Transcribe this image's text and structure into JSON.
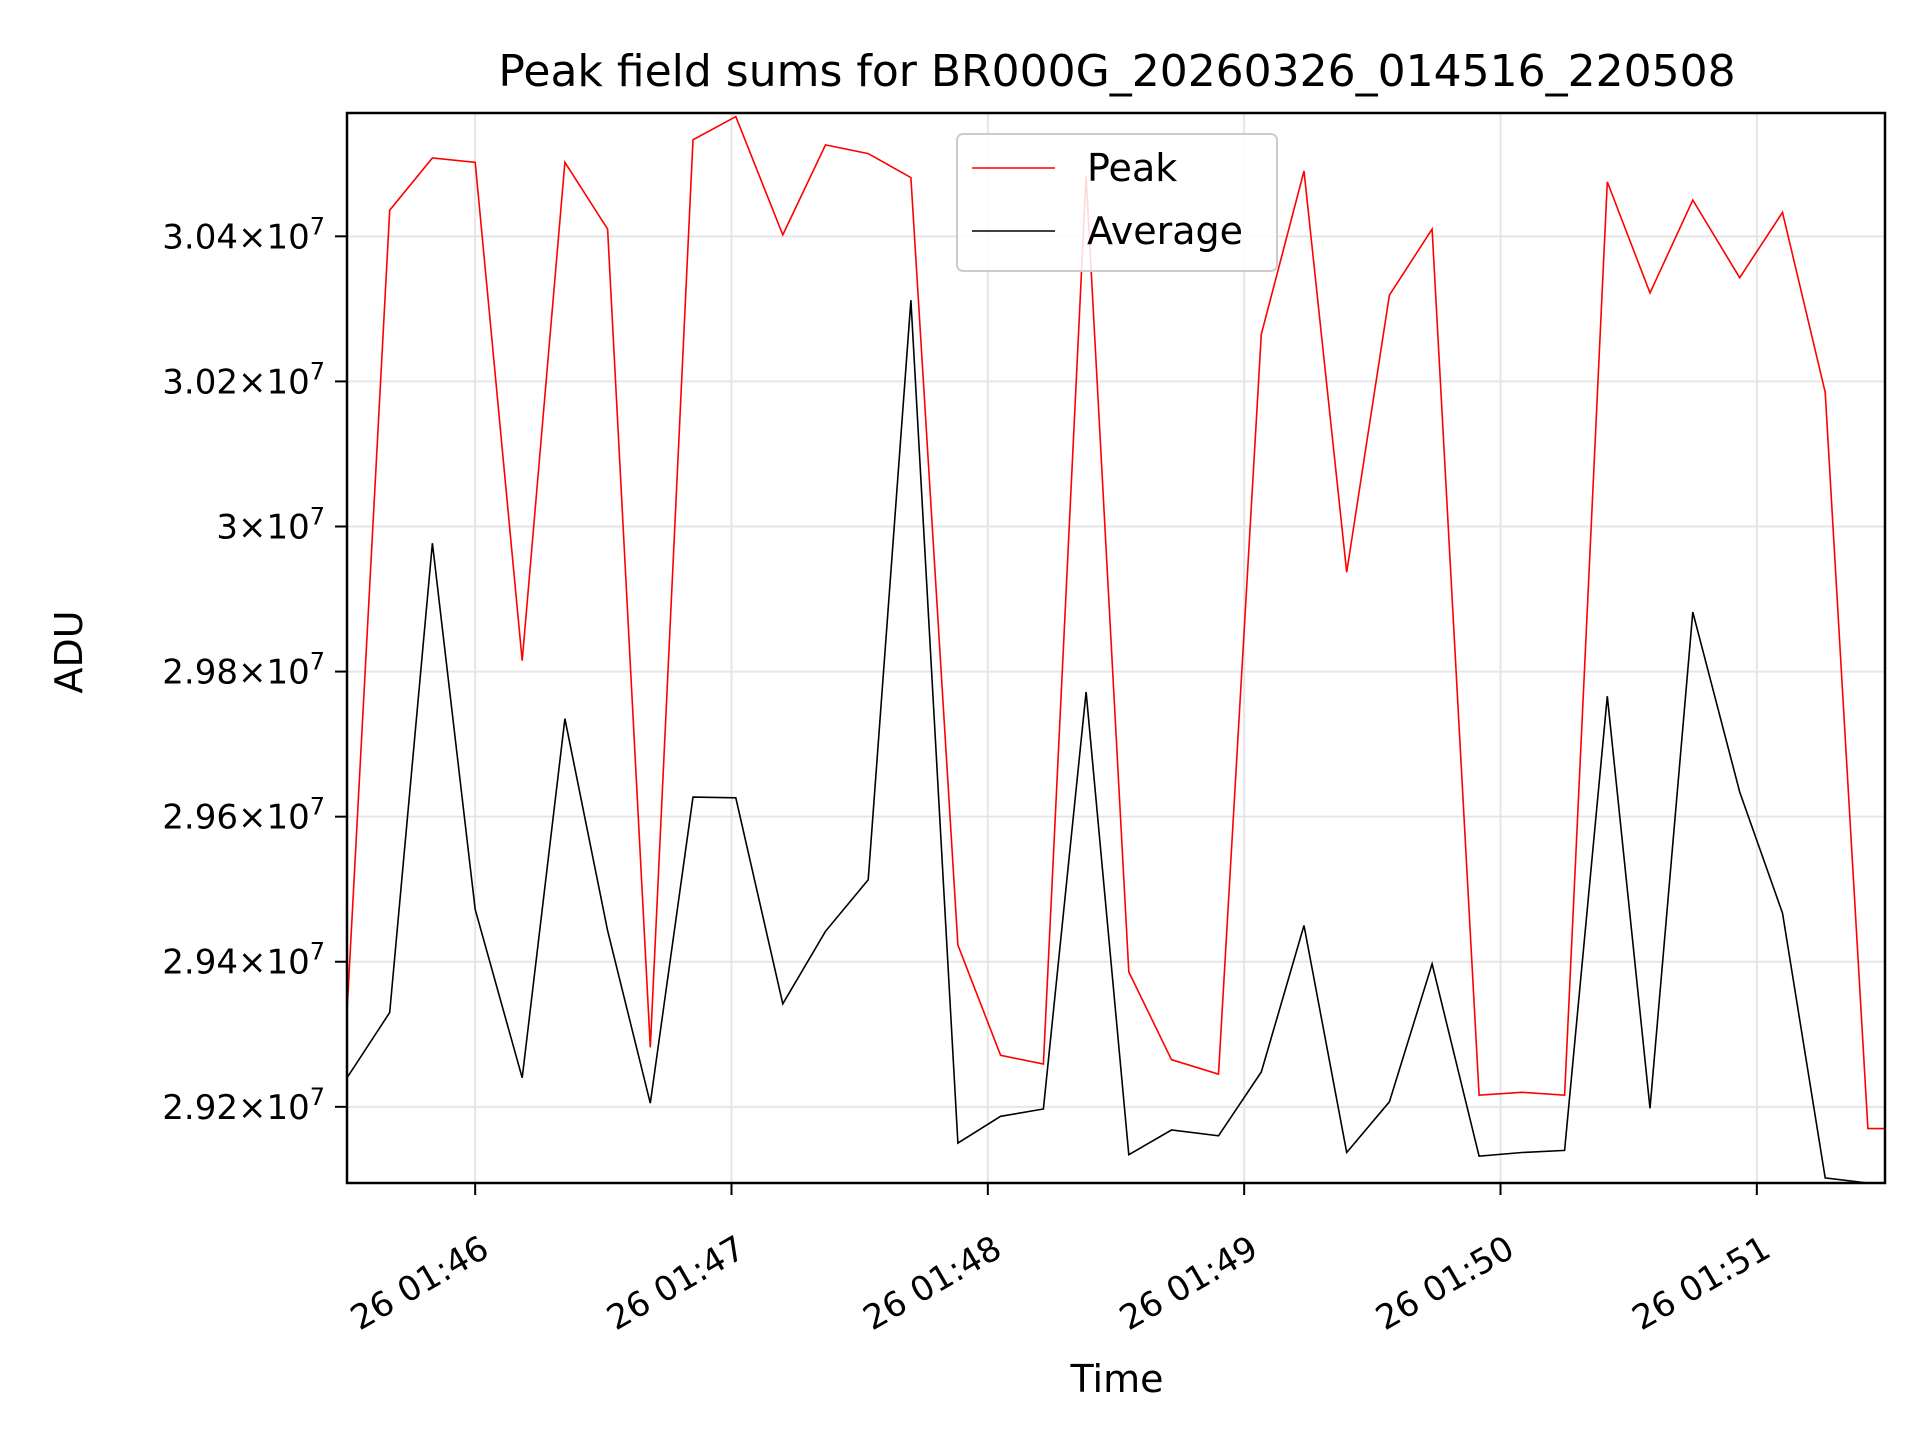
{
  "chart_data": {
    "type": "line",
    "title": "Peak field sums for BR000G_20260326_014516_220508",
    "xlabel": "Time",
    "ylabel": "ADU",
    "xlim": [
      "2026-03-26 01:45:30",
      "2026-03-26 01:51:30"
    ],
    "ylim": [
      29095000,
      30570000
    ],
    "grid": true,
    "legend_position": "top-center",
    "x_ticks": [
      {
        "t": "2026-03-26 01:46:00",
        "label": "26 01:46"
      },
      {
        "t": "2026-03-26 01:47:00",
        "label": "26 01:47"
      },
      {
        "t": "2026-03-26 01:48:00",
        "label": "26 01:48"
      },
      {
        "t": "2026-03-26 01:49:00",
        "label": "26 01:49"
      },
      {
        "t": "2026-03-26 01:50:00",
        "label": "26 01:50"
      },
      {
        "t": "2026-03-26 01:51:00",
        "label": "26 01:51"
      }
    ],
    "y_ticks": [
      {
        "v": 29200000,
        "mant": "2.92",
        "exp": "7"
      },
      {
        "v": 29400000,
        "mant": "2.94",
        "exp": "7"
      },
      {
        "v": 29600000,
        "mant": "2.96",
        "exp": "7"
      },
      {
        "v": 29800000,
        "mant": "2.98",
        "exp": "7"
      },
      {
        "v": 30000000,
        "mant": "3",
        "exp": "7"
      },
      {
        "v": 30200000,
        "mant": "3.02",
        "exp": "7"
      },
      {
        "v": 30400000,
        "mant": "3.04",
        "exp": "7"
      }
    ],
    "x": [
      "2026-03-26 01:45:30",
      "2026-03-26 01:45:40",
      "2026-03-26 01:45:50",
      "2026-03-26 01:46:00",
      "2026-03-26 01:46:11",
      "2026-03-26 01:46:21",
      "2026-03-26 01:46:31",
      "2026-03-26 01:46:41",
      "2026-03-26 01:46:51",
      "2026-03-26 01:47:01",
      "2026-03-26 01:47:12",
      "2026-03-26 01:47:22",
      "2026-03-26 01:47:32",
      "2026-03-26 01:47:42",
      "2026-03-26 01:47:53",
      "2026-03-26 01:48:03",
      "2026-03-26 01:48:13",
      "2026-03-26 01:48:23",
      "2026-03-26 01:48:33",
      "2026-03-26 01:48:43",
      "2026-03-26 01:48:54",
      "2026-03-26 01:49:04",
      "2026-03-26 01:49:14",
      "2026-03-26 01:49:24",
      "2026-03-26 01:49:34",
      "2026-03-26 01:49:44",
      "2026-03-26 01:49:55",
      "2026-03-26 01:50:05",
      "2026-03-26 01:50:15",
      "2026-03-26 01:50:25",
      "2026-03-26 01:50:35",
      "2026-03-26 01:50:45",
      "2026-03-26 01:50:56",
      "2026-03-26 01:51:06",
      "2026-03-26 01:51:16",
      "2026-03-26 01:51:26",
      "2026-03-26 01:51:30"
    ],
    "series": [
      {
        "name": "Peak",
        "color": "#ff0000",
        "values": [
          29330000,
          30436000,
          30508000,
          30502000,
          29815000,
          30502000,
          30410000,
          29282000,
          30533000,
          30565000,
          30402000,
          30526000,
          30514000,
          30481000,
          29423000,
          29271000,
          29259000,
          30483000,
          29386000,
          29265000,
          29245000,
          30265000,
          30490000,
          29937000,
          30319000,
          30410000,
          29216000,
          29220000,
          29216000,
          30475000,
          30322000,
          30450000,
          30343000,
          30433000,
          30185000,
          29170000,
          29170000
        ]
      },
      {
        "name": "Average",
        "color": "#000000",
        "values": [
          29240000,
          29330000,
          29977000,
          29472000,
          29240000,
          29735000,
          29443000,
          29205000,
          29627000,
          29626000,
          29342000,
          29442000,
          29513000,
          30312000,
          29150000,
          29187000,
          29197000,
          29772000,
          29134000,
          29168000,
          29160000,
          29248000,
          29450000,
          29137000,
          29207000,
          29397000,
          29132000,
          29137000,
          29140000,
          29766000,
          29198000,
          29882000,
          29634000,
          29467000,
          29102000,
          29095000,
          29095000
        ]
      }
    ]
  }
}
